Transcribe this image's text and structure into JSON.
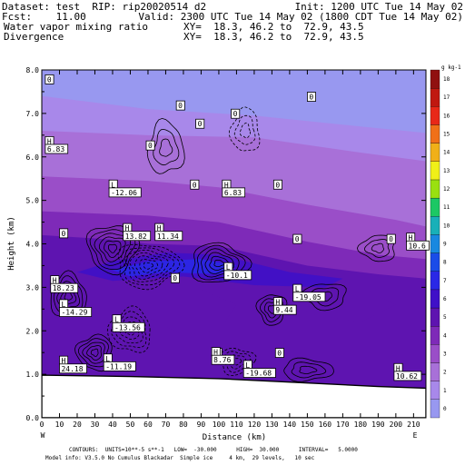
{
  "header": {
    "line1_left": "Dataset: test  RIP: rip20020514 d2",
    "line1_right": "Init: 1200 UTC Tue 14 May 02",
    "line2_left": "Fcst:    11.00",
    "line2_right": "Valid: 2300 UTC Tue 14 May 02 (1800 CDT Tue 14 May 02)",
    "line3_left": "Water vapor mixing ratio",
    "line3_right": "XY=  18.3, 46.2 to  72.9, 43.5",
    "line4_left": "Divergence",
    "line4_right": "XY=  18.3, 46.2 to  72.9, 43.5"
  },
  "footer": {
    "line1": "CONTOURS:  UNITS=10**-5 s**-1   LOW=  -30.000      HIGH=  30.000      INTERVAL=   5.0000",
    "line2": "Model info: V3.5.0 No Cumulus Blackadar  Simple ice     4 km,  29 levels,   10 sec"
  },
  "chart_data": {
    "type": "heatmap",
    "xlabel": "Distance (km)",
    "ylabel": "Height (km)",
    "xlim": [
      0,
      217
    ],
    "ylim": [
      0,
      8
    ],
    "x_ticks": [
      0,
      10,
      20,
      30,
      40,
      50,
      60,
      70,
      80,
      90,
      100,
      110,
      120,
      130,
      140,
      150,
      160,
      170,
      180,
      190,
      200,
      210
    ],
    "y_ticks": [
      "0.0",
      "1.0",
      "2.0",
      "3.0",
      "4.0",
      "5.0",
      "6.0",
      "7.0",
      "8.0"
    ],
    "x_end_labels": {
      "left": "W",
      "right": "E"
    },
    "colorbar": {
      "unit": "g kg-1",
      "levels": [
        0,
        1,
        2,
        3,
        4,
        5,
        6,
        7,
        8,
        9,
        10,
        11,
        12,
        13,
        14,
        15,
        16,
        17,
        18
      ],
      "colors": [
        "#9898f0",
        "#a888ea",
        "#a870d8",
        "#9a4ec8",
        "#7e2ab8",
        "#5e14b0",
        "#3f10c8",
        "#2a28e6",
        "#1a4ce8",
        "#1888e0",
        "#18b0b8",
        "#1cc864",
        "#9ae010",
        "#f0f018",
        "#f0b018",
        "#f07018",
        "#e82818",
        "#c01810",
        "#901010"
      ]
    },
    "terrain_km": [
      [
        0,
        0.98
      ],
      [
        50,
        0.95
      ],
      [
        100,
        0.9
      ],
      [
        150,
        0.8
      ],
      [
        190,
        0.72
      ],
      [
        217,
        0.68
      ]
    ],
    "moisture_layers": [
      {
        "level": 1,
        "top": [
          [
            0,
            7.4
          ],
          [
            60,
            7.1
          ],
          [
            120,
            6.95
          ],
          [
            180,
            6.7
          ],
          [
            217,
            6.55
          ]
        ]
      },
      {
        "level": 2,
        "top": [
          [
            0,
            6.6
          ],
          [
            60,
            6.5
          ],
          [
            120,
            6.45
          ],
          [
            180,
            6.1
          ],
          [
            217,
            5.9
          ]
        ]
      },
      {
        "level": 3,
        "top": [
          [
            0,
            5.55
          ],
          [
            60,
            5.45
          ],
          [
            100,
            5.3
          ],
          [
            150,
            4.9
          ],
          [
            200,
            4.55
          ],
          [
            217,
            4.4
          ]
        ]
      },
      {
        "level": 4,
        "top": [
          [
            0,
            4.75
          ],
          [
            60,
            4.65
          ],
          [
            100,
            4.5
          ],
          [
            150,
            4.05
          ],
          [
            190,
            3.75
          ],
          [
            217,
            3.65
          ]
        ]
      },
      {
        "level": 5,
        "top": [
          [
            0,
            4.2
          ],
          [
            40,
            4.1
          ],
          [
            60,
            4.0
          ],
          [
            100,
            3.95
          ],
          [
            150,
            3.5
          ],
          [
            190,
            3.3
          ],
          [
            217,
            3.2
          ]
        ]
      }
    ],
    "annotations": [
      {
        "text": "0",
        "x": 2,
        "y": 7.72
      },
      {
        "text": "0",
        "x": 150,
        "y": 7.32
      },
      {
        "text": "0",
        "x": 76,
        "y": 7.12
      },
      {
        "text": "0",
        "x": 107,
        "y": 6.93
      },
      {
        "text": "0",
        "x": 87,
        "y": 6.7
      },
      {
        "text": "0",
        "x": 59,
        "y": 6.2
      },
      {
        "text": "0",
        "x": 84,
        "y": 5.3
      },
      {
        "text": "0",
        "x": 131,
        "y": 5.3
      },
      {
        "text": "0",
        "x": 10,
        "y": 4.18
      },
      {
        "text": "0",
        "x": 142,
        "y": 4.05
      },
      {
        "text": "0",
        "x": 195,
        "y": 4.05
      },
      {
        "text": "0",
        "x": 73,
        "y": 3.15
      },
      {
        "text": "0",
        "x": 97,
        "y": 1.43
      },
      {
        "text": "0",
        "x": 132,
        "y": 1.43
      },
      {
        "text": "H",
        "x": 2,
        "y": 6.3
      },
      {
        "text": "6.83",
        "x": 2,
        "y": 6.12
      },
      {
        "text": "L",
        "x": 38,
        "y": 5.3
      },
      {
        "text": "-12.06",
        "x": 38,
        "y": 5.12
      },
      {
        "text": "H",
        "x": 102,
        "y": 5.3
      },
      {
        "text": "6.83",
        "x": 102,
        "y": 5.12
      },
      {
        "text": "H",
        "x": 46,
        "y": 4.3
      },
      {
        "text": "13.82",
        "x": 46,
        "y": 4.12
      },
      {
        "text": "H",
        "x": 64,
        "y": 4.3
      },
      {
        "text": "11.34",
        "x": 64,
        "y": 4.12
      },
      {
        "text": "H",
        "x": 206,
        "y": 4.08
      },
      {
        "text": "10.6",
        "x": 206,
        "y": 3.9
      },
      {
        "text": "L",
        "x": 103,
        "y": 3.4
      },
      {
        "text": "-10.1",
        "x": 103,
        "y": 3.22
      },
      {
        "text": "H",
        "x": 5,
        "y": 3.1
      },
      {
        "text": "18.23",
        "x": 5,
        "y": 2.92
      },
      {
        "text": "L",
        "x": 142,
        "y": 2.9
      },
      {
        "text": "-19.05",
        "x": 142,
        "y": 2.72
      },
      {
        "text": "L",
        "x": 10,
        "y": 2.55
      },
      {
        "text": "-14.29",
        "x": 10,
        "y": 2.37
      },
      {
        "text": "H",
        "x": 131,
        "y": 2.6
      },
      {
        "text": "9.44",
        "x": 131,
        "y": 2.42
      },
      {
        "text": "L",
        "x": 40,
        "y": 2.2
      },
      {
        "text": "-13.56",
        "x": 40,
        "y": 2.02
      },
      {
        "text": "H",
        "x": 96,
        "y": 1.45
      },
      {
        "text": "8.76",
        "x": 96,
        "y": 1.27
      },
      {
        "text": "L",
        "x": 35,
        "y": 1.3
      },
      {
        "text": "-11.19",
        "x": 35,
        "y": 1.12
      },
      {
        "text": "H",
        "x": 10,
        "y": 1.25
      },
      {
        "text": "24.18",
        "x": 10,
        "y": 1.07
      },
      {
        "text": "L",
        "x": 114,
        "y": 1.15
      },
      {
        "text": "-19.68",
        "x": 114,
        "y": 0.97
      },
      {
        "text": "H",
        "x": 199,
        "y": 1.08
      },
      {
        "text": "10.62",
        "x": 199,
        "y": 0.9
      }
    ]
  }
}
